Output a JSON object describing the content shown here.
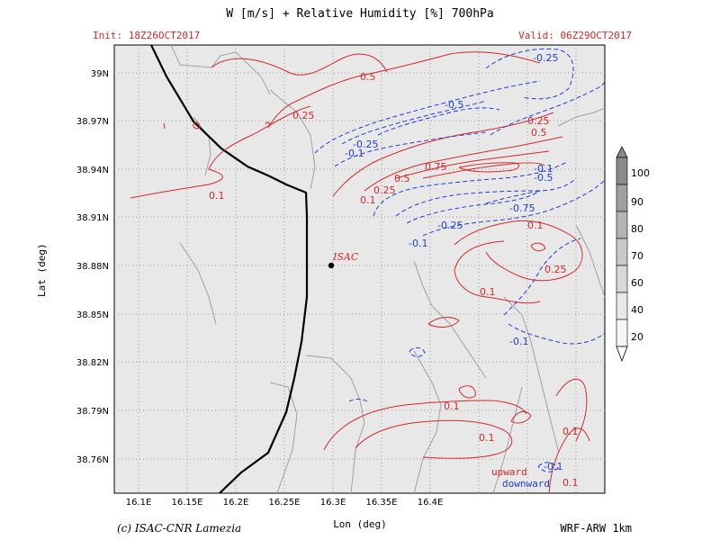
{
  "header": {
    "title": "W [m/s] + Relative Humidity [%] 700hPa",
    "init": "Init: 18Z26OCT2017",
    "valid": "Valid: 06Z29OCT2017"
  },
  "axes": {
    "xlabel": "Lon (deg)",
    "ylabel": "Lat (deg)",
    "x_ticks": [
      "16.1E",
      "16.15E",
      "16.2E",
      "16.25E",
      "16.3E",
      "16.35E",
      "16.4E"
    ],
    "y_ticks": [
      "39N",
      "38.97N",
      "38.94N",
      "38.91N",
      "38.88N",
      "38.85N",
      "38.82N",
      "38.79N",
      "38.76N"
    ]
  },
  "colorbar": {
    "levels": [
      "100",
      "90",
      "80",
      "70",
      "60",
      "40",
      "20"
    ]
  },
  "station": {
    "name": "ISAC"
  },
  "contour_labels": {
    "upward": [
      "0.5",
      "0.25",
      "0.1",
      "0.75",
      "0.5",
      "0.25",
      "0.1",
      "0.25",
      "0.5",
      "0.1",
      "0.25",
      "0.1",
      "0.1",
      "0.1",
      "0.1",
      "0.1"
    ],
    "downward": [
      "-0.25",
      "-0.5",
      "-0.25",
      "-0.1",
      "-0.1",
      "-0.5",
      "-0.75",
      "-0.25",
      "-0.1",
      "-0.1",
      "-0.1"
    ]
  },
  "legend": {
    "upward": "upward",
    "downward": "downward"
  },
  "footer": {
    "copyright": "(c) ISAC-CNR Lamezia",
    "model": "WRF-ARW 1km"
  },
  "colors": {
    "upward": "#d62828",
    "downward": "#1f3fd6",
    "land": "#e8e8e8",
    "coast": "#000000"
  }
}
